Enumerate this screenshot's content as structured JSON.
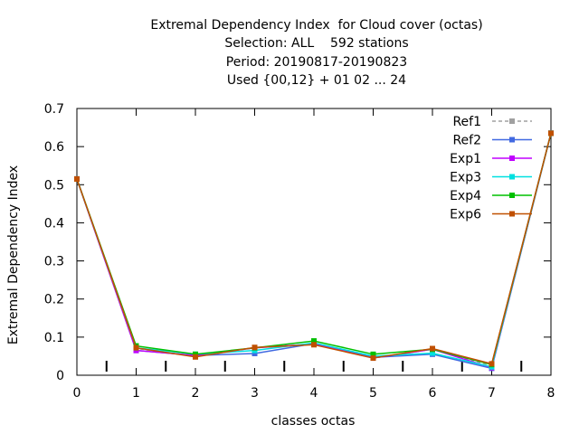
{
  "chart_data": {
    "type": "line",
    "title_lines": [
      "Extremal Dependency Index  for Cloud cover (octas)",
      "Selection: ALL    592 stations",
      "Period: 20190817-20190823",
      "Used {00,12} + 01 02 ... 24"
    ],
    "xlabel": "classes octas",
    "ylabel": "Extremal Dependency Index",
    "xlim": [
      0,
      8
    ],
    "ylim": [
      0,
      0.7
    ],
    "x_ticks": [
      "0",
      "1",
      "2",
      "3",
      "4",
      "5",
      "6",
      "7",
      "8"
    ],
    "y_ticks": [
      "0",
      "0.1",
      "0.2",
      "0.3",
      "0.4",
      "0.5",
      "0.6",
      "0.7"
    ],
    "class_separators": [
      0.5,
      1.5,
      2.5,
      3.5,
      4.5,
      5.5,
      6.5,
      7.5
    ],
    "grid": false,
    "legend_position": "top-right",
    "x": [
      0,
      1,
      2,
      3,
      4,
      5,
      6,
      7,
      8
    ],
    "series": [
      {
        "name": "Ref1",
        "color": "#a0a0a0",
        "dashed": true,
        "values": [
          0.515,
          0.07,
          0.05,
          0.072,
          0.082,
          0.045,
          0.068,
          0.025,
          0.635
        ]
      },
      {
        "name": "Ref2",
        "color": "#4169e1",
        "dashed": false,
        "values": [
          0.515,
          0.065,
          0.052,
          0.057,
          0.083,
          0.047,
          0.055,
          0.018,
          0.635
        ]
      },
      {
        "name": "Exp1",
        "color": "#c000ff",
        "dashed": false,
        "values": [
          0.515,
          0.065,
          0.052,
          0.072,
          0.082,
          0.045,
          0.068,
          0.02,
          0.635
        ]
      },
      {
        "name": "Exp3",
        "color": "#00e0e0",
        "dashed": false,
        "values": [
          0.515,
          0.072,
          0.055,
          0.065,
          0.085,
          0.05,
          0.058,
          0.022,
          0.635
        ]
      },
      {
        "name": "Exp4",
        "color": "#00c000",
        "dashed": false,
        "values": [
          0.515,
          0.077,
          0.055,
          0.072,
          0.09,
          0.055,
          0.068,
          0.028,
          0.635
        ]
      },
      {
        "name": "Exp6",
        "color": "#c05000",
        "dashed": false,
        "values": [
          0.515,
          0.072,
          0.048,
          0.073,
          0.08,
          0.045,
          0.07,
          0.03,
          0.635
        ]
      }
    ]
  }
}
